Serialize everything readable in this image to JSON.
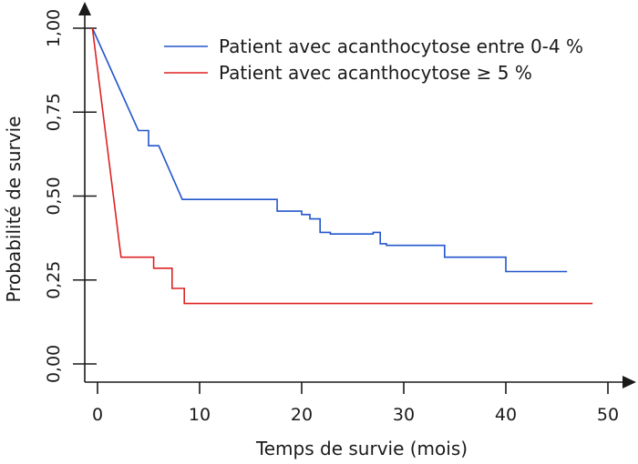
{
  "chart_data": {
    "type": "line",
    "step": true,
    "title": "",
    "xlabel": "Temps de survie (mois)",
    "ylabel": "Probabilité de survie",
    "xlim": [
      0,
      50
    ],
    "ylim": [
      0,
      1
    ],
    "x_ticks": [
      0,
      10,
      20,
      30,
      40,
      50
    ],
    "x_tick_labels": [
      "0",
      "10",
      "20",
      "30",
      "40",
      "50"
    ],
    "y_ticks": [
      0,
      0.25,
      0.5,
      0.75,
      1.0
    ],
    "y_tick_labels": [
      "0,00",
      "0,25",
      "0,50",
      "0,75",
      "1,00"
    ],
    "grid": false,
    "legend_position": "top-right",
    "series": [
      {
        "name": "Patient avec acanthocytose entre 0-4 %",
        "color": "#2255cc",
        "points": [
          [
            -0.5,
            1.0
          ],
          [
            4.0,
            0.695
          ],
          [
            5.0,
            0.695
          ],
          [
            5.0,
            0.65
          ],
          [
            6.0,
            0.65
          ],
          [
            8.3,
            0.49
          ],
          [
            17.6,
            0.49
          ],
          [
            17.6,
            0.455
          ],
          [
            20.0,
            0.455
          ],
          [
            20.0,
            0.445
          ],
          [
            20.8,
            0.445
          ],
          [
            20.8,
            0.432
          ],
          [
            21.8,
            0.432
          ],
          [
            21.8,
            0.392
          ],
          [
            22.8,
            0.392
          ],
          [
            22.8,
            0.387
          ],
          [
            27.0,
            0.387
          ],
          [
            27.0,
            0.392
          ],
          [
            27.7,
            0.392
          ],
          [
            27.7,
            0.358
          ],
          [
            28.3,
            0.358
          ],
          [
            28.3,
            0.353
          ],
          [
            34.0,
            0.353
          ],
          [
            34.0,
            0.318
          ],
          [
            40.0,
            0.318
          ],
          [
            40.0,
            0.275
          ],
          [
            46.0,
            0.275
          ]
        ]
      },
      {
        "name": "Patient avec acanthocytose ≥ 5 %",
        "color": "#dd2222",
        "points": [
          [
            -0.5,
            1.0
          ],
          [
            2.3,
            0.318
          ],
          [
            5.5,
            0.318
          ],
          [
            5.5,
            0.285
          ],
          [
            7.3,
            0.285
          ],
          [
            7.3,
            0.225
          ],
          [
            8.5,
            0.225
          ],
          [
            8.5,
            0.18
          ],
          [
            48.5,
            0.18
          ]
        ]
      }
    ]
  }
}
